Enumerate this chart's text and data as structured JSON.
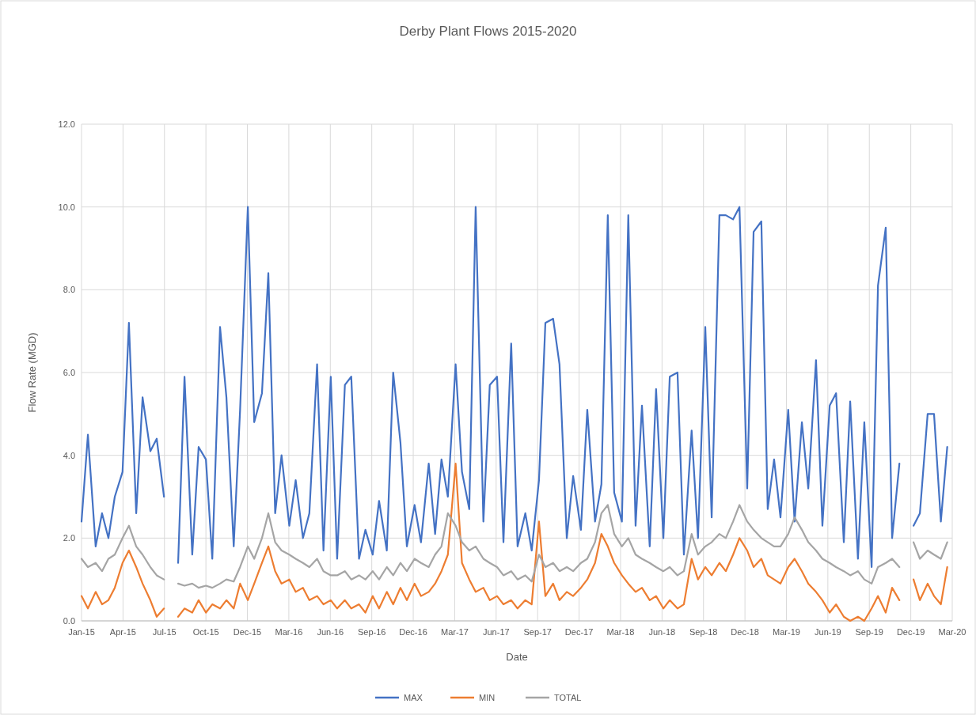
{
  "chart_data": {
    "type": "line",
    "title": "Derby Plant Flows 2015-2020",
    "xlabel": "Date",
    "ylabel": "Flow Rate (MGD)",
    "x": [
      "2015-01-01",
      "2015-01-15",
      "2015-02-01",
      "2015-02-15",
      "2015-03-01",
      "2015-03-15",
      "2015-04-01",
      "2015-04-15",
      "2015-05-01",
      "2015-05-15",
      "2015-06-01",
      "2015-06-15",
      "2015-07-01",
      "2015-07-15",
      "2015-08-01",
      "2015-08-15",
      "2015-09-01",
      "2015-09-15",
      "2015-10-01",
      "2015-10-15",
      "2015-11-01",
      "2015-11-15",
      "2015-12-01",
      "2015-12-15",
      "2016-01-01",
      "2016-01-15",
      "2016-02-01",
      "2016-02-15",
      "2016-03-01",
      "2016-03-15",
      "2016-04-01",
      "2016-04-15",
      "2016-05-01",
      "2016-05-15",
      "2016-06-01",
      "2016-06-15",
      "2016-07-01",
      "2016-07-15",
      "2016-08-01",
      "2016-08-15",
      "2016-09-01",
      "2016-09-15",
      "2016-10-01",
      "2016-10-15",
      "2016-11-01",
      "2016-11-15",
      "2016-12-01",
      "2016-12-15",
      "2017-01-01",
      "2017-01-15",
      "2017-02-01",
      "2017-02-15",
      "2017-03-01",
      "2017-03-15",
      "2017-04-01",
      "2017-04-15",
      "2017-05-01",
      "2017-05-15",
      "2017-06-01",
      "2017-06-15",
      "2017-07-01",
      "2017-07-15",
      "2017-08-01",
      "2017-08-15",
      "2017-09-01",
      "2017-09-15",
      "2017-10-01",
      "2017-10-15",
      "2017-11-01",
      "2017-11-15",
      "2017-12-01",
      "2017-12-15",
      "2018-01-01",
      "2018-01-15",
      "2018-02-01",
      "2018-02-15",
      "2018-03-01",
      "2018-03-15",
      "2018-04-01",
      "2018-04-15",
      "2018-05-01",
      "2018-05-15",
      "2018-06-01",
      "2018-06-15",
      "2018-07-01",
      "2018-07-15",
      "2018-08-01",
      "2018-08-15",
      "2018-09-01",
      "2018-09-15",
      "2018-10-01",
      "2018-10-15",
      "2018-11-01",
      "2018-11-15",
      "2018-12-01",
      "2018-12-15",
      "2019-01-01",
      "2019-01-15",
      "2019-02-01",
      "2019-02-15",
      "2019-03-01",
      "2019-03-15",
      "2019-04-01",
      "2019-04-15",
      "2019-05-01",
      "2019-05-15",
      "2019-06-01",
      "2019-06-15",
      "2019-07-01",
      "2019-07-15",
      "2019-08-01",
      "2019-08-15",
      "2019-09-01",
      "2019-09-15",
      "2019-10-01",
      "2019-10-15",
      "2019-11-01",
      "2019-11-15",
      "2019-12-01",
      "2019-12-15",
      "2020-01-01",
      "2020-01-15",
      "2020-02-01",
      "2020-02-15",
      "2020-03-01",
      "2020-03-15"
    ],
    "series": [
      {
        "name": "MAX",
        "color": "#4472c4",
        "values": [
          2.4,
          4.5,
          1.8,
          2.6,
          2.0,
          3.0,
          3.6,
          7.2,
          2.6,
          5.4,
          4.1,
          4.4,
          3.0,
          null,
          1.4,
          5.9,
          1.6,
          4.2,
          3.9,
          1.5,
          7.1,
          5.4,
          1.8,
          5.1,
          10.0,
          4.8,
          5.5,
          8.4,
          2.6,
          4.0,
          2.3,
          3.4,
          2.0,
          2.6,
          6.2,
          1.7,
          5.9,
          1.5,
          5.7,
          5.9,
          1.5,
          2.2,
          1.6,
          2.9,
          1.7,
          6.0,
          4.3,
          1.8,
          2.8,
          1.9,
          3.8,
          2.1,
          3.9,
          3.0,
          6.2,
          3.6,
          2.7,
          10.0,
          2.4,
          5.7,
          5.9,
          1.9,
          6.7,
          1.8,
          2.6,
          1.7,
          3.4,
          7.2,
          7.3,
          6.2,
          2.0,
          3.5,
          2.2,
          5.1,
          2.4,
          3.3,
          9.8,
          3.1,
          2.4,
          9.8,
          2.3,
          5.2,
          1.8,
          5.6,
          2.0,
          5.9,
          6.0,
          1.6,
          4.6,
          2.0,
          7.1,
          2.5,
          9.8,
          9.8,
          9.7,
          10.0,
          3.2,
          9.4,
          9.65,
          2.7,
          3.9,
          2.5,
          5.1,
          2.4,
          4.8,
          3.2,
          6.3,
          2.3,
          5.2,
          5.5,
          1.9,
          5.3,
          1.5,
          4.8,
          1.3,
          8.1,
          9.5,
          2.0,
          3.8,
          null,
          2.3,
          2.6,
          5.0,
          5.0,
          2.4,
          4.2
        ]
      },
      {
        "name": "MIN",
        "color": "#ed7d31",
        "values": [
          0.6,
          0.3,
          0.7,
          0.4,
          0.5,
          0.8,
          1.4,
          1.7,
          1.3,
          0.9,
          0.5,
          0.1,
          0.3,
          null,
          0.1,
          0.3,
          0.2,
          0.5,
          0.2,
          0.4,
          0.3,
          0.5,
          0.3,
          0.9,
          0.5,
          0.9,
          1.4,
          1.8,
          1.2,
          0.9,
          1.0,
          0.7,
          0.8,
          0.5,
          0.6,
          0.4,
          0.5,
          0.3,
          0.5,
          0.3,
          0.4,
          0.2,
          0.6,
          0.3,
          0.7,
          0.4,
          0.8,
          0.5,
          0.9,
          0.6,
          0.7,
          0.9,
          1.2,
          1.6,
          3.8,
          1.4,
          1.0,
          0.7,
          0.8,
          0.5,
          0.6,
          0.4,
          0.5,
          0.3,
          0.5,
          0.4,
          2.4,
          0.6,
          0.9,
          0.5,
          0.7,
          0.6,
          0.8,
          1.0,
          1.4,
          2.1,
          1.8,
          1.4,
          1.1,
          0.9,
          0.7,
          0.8,
          0.5,
          0.6,
          0.3,
          0.5,
          0.3,
          0.4,
          1.5,
          1.0,
          1.3,
          1.1,
          1.4,
          1.2,
          1.6,
          2.0,
          1.7,
          1.3,
          1.5,
          1.1,
          1.0,
          0.9,
          1.3,
          1.5,
          1.2,
          0.9,
          0.7,
          0.5,
          0.2,
          0.4,
          0.1,
          0.0,
          0.1,
          0.0,
          0.3,
          0.6,
          0.2,
          0.8,
          0.5,
          null,
          1.0,
          0.5,
          0.9,
          0.6,
          0.4,
          1.3
        ]
      },
      {
        "name": "TOTAL",
        "color": "#a5a5a5",
        "values": [
          1.5,
          1.3,
          1.4,
          1.2,
          1.5,
          1.6,
          2.0,
          2.3,
          1.8,
          1.6,
          1.3,
          1.1,
          1.0,
          null,
          0.9,
          0.85,
          0.9,
          0.8,
          0.85,
          0.8,
          0.9,
          1.0,
          0.95,
          1.3,
          1.8,
          1.5,
          2.0,
          2.6,
          1.9,
          1.7,
          1.6,
          1.5,
          1.4,
          1.3,
          1.5,
          1.2,
          1.1,
          1.1,
          1.2,
          1.0,
          1.1,
          1.0,
          1.2,
          1.0,
          1.3,
          1.1,
          1.4,
          1.2,
          1.5,
          1.4,
          1.3,
          1.6,
          1.8,
          2.6,
          2.3,
          1.9,
          1.7,
          1.8,
          1.5,
          1.4,
          1.3,
          1.1,
          1.2,
          1.0,
          1.1,
          0.95,
          1.6,
          1.3,
          1.4,
          1.2,
          1.3,
          1.2,
          1.4,
          1.5,
          1.9,
          2.6,
          2.8,
          2.1,
          1.8,
          2.0,
          1.6,
          1.5,
          1.4,
          1.3,
          1.2,
          1.3,
          1.1,
          1.2,
          2.1,
          1.6,
          1.8,
          1.9,
          2.1,
          2.0,
          2.4,
          2.8,
          2.4,
          2.2,
          2.0,
          1.9,
          1.8,
          1.8,
          2.1,
          2.5,
          2.2,
          1.9,
          1.7,
          1.5,
          1.4,
          1.3,
          1.2,
          1.1,
          1.2,
          1.0,
          0.9,
          1.3,
          1.4,
          1.5,
          1.3,
          null,
          1.9,
          1.5,
          1.7,
          1.6,
          1.5,
          1.9
        ]
      }
    ],
    "xlim": [
      "2015-01-01",
      "2020-03-26"
    ],
    "xticks": [
      {
        "value": "2015-01-01",
        "label": "Jan-15"
      },
      {
        "value": "2015-04-02",
        "label": "Apr-15"
      },
      {
        "value": "2015-07-02",
        "label": "Jul-15"
      },
      {
        "value": "2015-10-01",
        "label": "Oct-15"
      },
      {
        "value": "2015-12-31",
        "label": "Dec-15"
      },
      {
        "value": "2016-03-31",
        "label": "Mar-16"
      },
      {
        "value": "2016-06-30",
        "label": "Jun-16"
      },
      {
        "value": "2016-09-29",
        "label": "Sep-16"
      },
      {
        "value": "2016-12-29",
        "label": "Dec-16"
      },
      {
        "value": "2017-03-30",
        "label": "Mar-17"
      },
      {
        "value": "2017-06-29",
        "label": "Jun-17"
      },
      {
        "value": "2017-09-28",
        "label": "Sep-17"
      },
      {
        "value": "2017-12-28",
        "label": "Dec-17"
      },
      {
        "value": "2018-03-29",
        "label": "Mar-18"
      },
      {
        "value": "2018-06-28",
        "label": "Jun-18"
      },
      {
        "value": "2018-09-27",
        "label": "Sep-18"
      },
      {
        "value": "2018-12-27",
        "label": "Dec-18"
      },
      {
        "value": "2019-03-28",
        "label": "Mar-19"
      },
      {
        "value": "2019-06-27",
        "label": "Jun-19"
      },
      {
        "value": "2019-09-26",
        "label": "Sep-19"
      },
      {
        "value": "2019-12-26",
        "label": "Dec-19"
      },
      {
        "value": "2020-03-26",
        "label": "Mar-20"
      }
    ],
    "ylim": [
      0,
      12
    ],
    "yticks": [
      {
        "value": 0,
        "label": "0.0"
      },
      {
        "value": 2,
        "label": "2.0"
      },
      {
        "value": 4,
        "label": "4.0"
      },
      {
        "value": 6,
        "label": "6.0"
      },
      {
        "value": 8,
        "label": "8.0"
      },
      {
        "value": 10,
        "label": "10.0"
      },
      {
        "value": 12,
        "label": "12.0"
      }
    ],
    "grid": true,
    "legend": "bottom",
    "marker": "none",
    "line_style": "solid"
  }
}
